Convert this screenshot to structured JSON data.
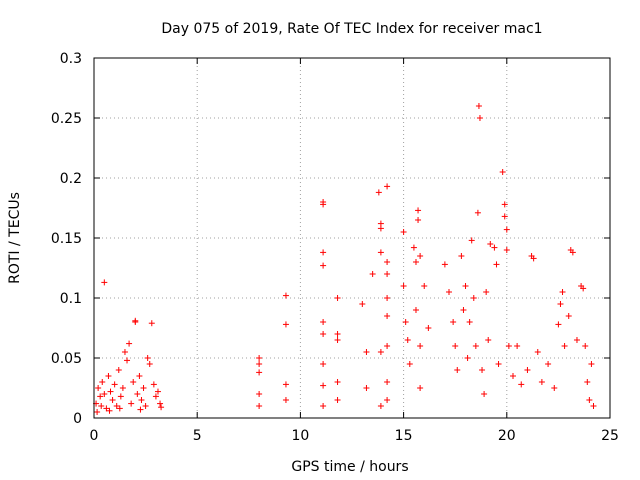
{
  "chart_data": {
    "type": "scatter",
    "title": "Day 075 of 2019, Rate Of TEC Index for receiver mac1",
    "xlabel": "GPS time / hours",
    "ylabel": "ROTI / TECUs",
    "xlim": [
      0,
      25
    ],
    "ylim": [
      0,
      0.3
    ],
    "xticks": [
      0,
      5,
      10,
      15,
      20,
      25
    ],
    "yticks": [
      0,
      0.05,
      0.1,
      0.15,
      0.2,
      0.25,
      0.3
    ],
    "xtick_labels": [
      "0",
      "5",
      "10",
      "15",
      "20",
      "25"
    ],
    "ytick_labels": [
      "0",
      "0.05",
      "0.1",
      "0.15",
      "0.2",
      "0.25",
      "0.3"
    ],
    "grid": true,
    "marker": "+",
    "color": "#ff0000",
    "series": [
      {
        "name": "ROTI",
        "points": [
          [
            0.1,
            0.012
          ],
          [
            0.2,
            0.025
          ],
          [
            0.3,
            0.018
          ],
          [
            0.4,
            0.03
          ],
          [
            0.5,
            0.113
          ],
          [
            0.5,
            0.02
          ],
          [
            0.6,
            0.008
          ],
          [
            0.7,
            0.035
          ],
          [
            0.8,
            0.022
          ],
          [
            0.9,
            0.015
          ],
          [
            1.0,
            0.028
          ],
          [
            1.1,
            0.01
          ],
          [
            1.2,
            0.04
          ],
          [
            1.3,
            0.018
          ],
          [
            1.4,
            0.025
          ],
          [
            1.5,
            0.055
          ],
          [
            1.6,
            0.048
          ],
          [
            1.7,
            0.062
          ],
          [
            1.8,
            0.012
          ],
          [
            1.9,
            0.03
          ],
          [
            2.0,
            0.081
          ],
          [
            2.0,
            0.08
          ],
          [
            2.1,
            0.02
          ],
          [
            2.2,
            0.035
          ],
          [
            2.3,
            0.015
          ],
          [
            2.4,
            0.025
          ],
          [
            2.5,
            0.01
          ],
          [
            2.6,
            0.05
          ],
          [
            2.7,
            0.045
          ],
          [
            2.8,
            0.079
          ],
          [
            2.9,
            0.028
          ],
          [
            3.0,
            0.018
          ],
          [
            3.1,
            0.022
          ],
          [
            3.2,
            0.012
          ],
          [
            0.15,
            0.005
          ],
          [
            0.35,
            0.01
          ],
          [
            0.75,
            0.006
          ],
          [
            1.25,
            0.008
          ],
          [
            2.25,
            0.007
          ],
          [
            3.25,
            0.009
          ],
          [
            8.0,
            0.05
          ],
          [
            8.0,
            0.045
          ],
          [
            8.0,
            0.038
          ],
          [
            8.0,
            0.02
          ],
          [
            8.0,
            0.01
          ],
          [
            9.3,
            0.102
          ],
          [
            9.3,
            0.078
          ],
          [
            9.3,
            0.028
          ],
          [
            9.3,
            0.015
          ],
          [
            11.1,
            0.18
          ],
          [
            11.1,
            0.178
          ],
          [
            11.1,
            0.138
          ],
          [
            11.1,
            0.127
          ],
          [
            11.1,
            0.08
          ],
          [
            11.1,
            0.07
          ],
          [
            11.1,
            0.045
          ],
          [
            11.1,
            0.027
          ],
          [
            11.1,
            0.01
          ],
          [
            11.8,
            0.1
          ],
          [
            11.8,
            0.07
          ],
          [
            11.8,
            0.065
          ],
          [
            11.8,
            0.03
          ],
          [
            11.8,
            0.015
          ],
          [
            13.0,
            0.095
          ],
          [
            13.2,
            0.055
          ],
          [
            13.2,
            0.025
          ],
          [
            13.5,
            0.12
          ],
          [
            13.8,
            0.188
          ],
          [
            13.9,
            0.162
          ],
          [
            13.9,
            0.158
          ],
          [
            13.9,
            0.138
          ],
          [
            13.9,
            0.055
          ],
          [
            13.9,
            0.01
          ],
          [
            14.2,
            0.193
          ],
          [
            14.2,
            0.13
          ],
          [
            14.2,
            0.12
          ],
          [
            14.2,
            0.1
          ],
          [
            14.2,
            0.085
          ],
          [
            14.2,
            0.06
          ],
          [
            14.2,
            0.03
          ],
          [
            14.2,
            0.015
          ],
          [
            15.0,
            0.155
          ],
          [
            15.0,
            0.11
          ],
          [
            15.1,
            0.08
          ],
          [
            15.2,
            0.065
          ],
          [
            15.3,
            0.045
          ],
          [
            15.5,
            0.142
          ],
          [
            15.6,
            0.13
          ],
          [
            15.6,
            0.09
          ],
          [
            15.7,
            0.173
          ],
          [
            15.7,
            0.165
          ],
          [
            15.8,
            0.135
          ],
          [
            15.8,
            0.06
          ],
          [
            15.8,
            0.025
          ],
          [
            16.0,
            0.11
          ],
          [
            16.2,
            0.075
          ],
          [
            17.0,
            0.128
          ],
          [
            17.2,
            0.105
          ],
          [
            17.4,
            0.08
          ],
          [
            17.5,
            0.06
          ],
          [
            17.6,
            0.04
          ],
          [
            17.8,
            0.135
          ],
          [
            17.9,
            0.09
          ],
          [
            18.0,
            0.11
          ],
          [
            18.1,
            0.05
          ],
          [
            18.2,
            0.08
          ],
          [
            18.3,
            0.148
          ],
          [
            18.4,
            0.1
          ],
          [
            18.5,
            0.06
          ],
          [
            18.6,
            0.171
          ],
          [
            18.65,
            0.26
          ],
          [
            18.7,
            0.25
          ],
          [
            18.8,
            0.04
          ],
          [
            18.9,
            0.02
          ],
          [
            19.0,
            0.105
          ],
          [
            19.1,
            0.065
          ],
          [
            19.2,
            0.145
          ],
          [
            19.4,
            0.142
          ],
          [
            19.5,
            0.128
          ],
          [
            19.6,
            0.045
          ],
          [
            19.8,
            0.205
          ],
          [
            19.9,
            0.178
          ],
          [
            19.9,
            0.168
          ],
          [
            20.0,
            0.157
          ],
          [
            20.0,
            0.14
          ],
          [
            20.1,
            0.06
          ],
          [
            20.3,
            0.035
          ],
          [
            20.5,
            0.06
          ],
          [
            20.7,
            0.028
          ],
          [
            21.0,
            0.04
          ],
          [
            21.2,
            0.135
          ],
          [
            21.3,
            0.133
          ],
          [
            21.5,
            0.055
          ],
          [
            21.7,
            0.03
          ],
          [
            22.0,
            0.045
          ],
          [
            22.3,
            0.025
          ],
          [
            22.5,
            0.078
          ],
          [
            22.6,
            0.095
          ],
          [
            22.7,
            0.105
          ],
          [
            22.8,
            0.06
          ],
          [
            23.0,
            0.085
          ],
          [
            23.1,
            0.14
          ],
          [
            23.2,
            0.138
          ],
          [
            23.4,
            0.065
          ],
          [
            23.6,
            0.11
          ],
          [
            23.7,
            0.108
          ],
          [
            23.8,
            0.06
          ],
          [
            23.9,
            0.03
          ],
          [
            24.0,
            0.015
          ],
          [
            24.1,
            0.045
          ],
          [
            24.2,
            0.01
          ]
        ]
      }
    ]
  }
}
